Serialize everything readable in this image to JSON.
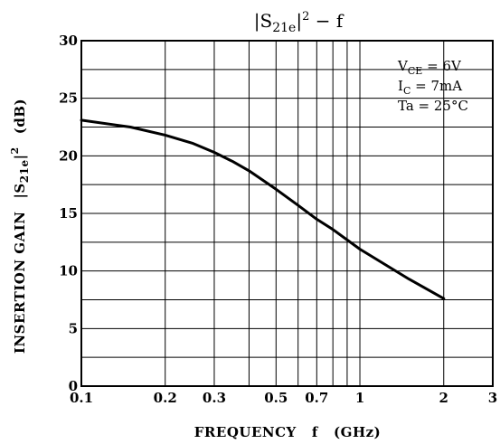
{
  "chart_data": {
    "type": "line",
    "title": "|S21e|2 − f",
    "title_parts": {
      "pre": "|S",
      "sub": "21e",
      "mid": "|",
      "sup": "2",
      "post": " − f"
    },
    "xlabel": "FREQUENCY   f   (GHz)",
    "ylabel": {
      "text": "INSERTION GAIN",
      "pre": "|S",
      "sub": "21e",
      "mid": "|",
      "sup": "2",
      "unit": "(dB)"
    },
    "x_scale": "log",
    "xlim": [
      0.1,
      3
    ],
    "ylim": [
      0,
      30
    ],
    "grid": true,
    "x_ticks": [
      {
        "value": 0.1,
        "label": "0.1"
      },
      {
        "value": 0.2,
        "label": "0.2"
      },
      {
        "value": 0.3,
        "label": "0.3"
      },
      {
        "value": 0.5,
        "label": "0.5"
      },
      {
        "value": 0.7,
        "label": "0.7"
      },
      {
        "value": 1,
        "label": "1"
      },
      {
        "value": 2,
        "label": "2"
      },
      {
        "value": 3,
        "label": "3"
      }
    ],
    "x_minor_grid": [
      0.4,
      0.6,
      0.8,
      0.9
    ],
    "y_ticks": [
      {
        "value": 0,
        "label": "0"
      },
      {
        "value": 5,
        "label": "5"
      },
      {
        "value": 10,
        "label": "10"
      },
      {
        "value": 15,
        "label": "15"
      },
      {
        "value": 20,
        "label": "20"
      },
      {
        "value": 25,
        "label": "25"
      },
      {
        "value": 30,
        "label": "30"
      }
    ],
    "y_minor_grid": [
      2.5,
      7.5,
      12.5,
      17.5,
      22.5,
      27.5
    ],
    "conditions": [
      {
        "pre": "V",
        "sub": "CE",
        "post": " = 6V"
      },
      {
        "pre": "I",
        "sub": "C",
        "post": " = 7mA"
      },
      {
        "pre": "Ta = 25°C",
        "sub": "",
        "post": ""
      }
    ],
    "series": [
      {
        "x": [
          0.1,
          0.15,
          0.2,
          0.25,
          0.3,
          0.35,
          0.4,
          0.5,
          0.6,
          0.7,
          0.8,
          1.0,
          1.5,
          2.0
        ],
        "y": [
          23.1,
          22.5,
          21.8,
          21.1,
          20.3,
          19.5,
          18.7,
          17.1,
          15.7,
          14.5,
          13.6,
          11.9,
          9.3,
          7.6
        ]
      }
    ],
    "line_color": "#000000"
  }
}
